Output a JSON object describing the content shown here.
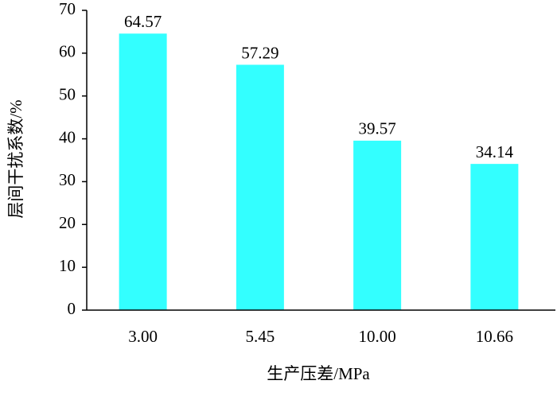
{
  "chart_data": {
    "type": "bar",
    "x_label": "生产压差/MPa",
    "y_label": "层间干扰系数/%",
    "categories": [
      "3.00",
      "5.45",
      "10.00",
      "10.66"
    ],
    "values": [
      64.57,
      57.29,
      39.57,
      34.14
    ],
    "color": "#33ffff",
    "ylim": [
      0,
      70
    ],
    "yticks": [
      0,
      10,
      20,
      30,
      40,
      50,
      60,
      70
    ],
    "grid": false
  }
}
